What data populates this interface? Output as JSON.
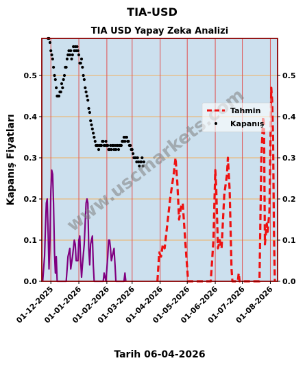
{
  "chart_data": {
    "type": "line",
    "suptitle": "TIA-USD",
    "title": "TIA USD Yapay Zeka Analizi",
    "ylabel": "Kapanış Fiyatları",
    "xlabel": "Tarih 06-04-2026",
    "watermark": "www.uscmarkets.com",
    "ylim": [
      0,
      0.59
    ],
    "xlim": [
      "2025-11-21",
      "2026-08-09"
    ],
    "yticks": [
      "0.0",
      "0.1",
      "0.2",
      "0.3",
      "0.4",
      "0.5"
    ],
    "ytick_values": [
      0,
      0.1,
      0.2,
      0.3,
      0.4,
      0.5
    ],
    "xticks": [
      "01-12-2025",
      "01-01-2026",
      "01-02-2026",
      "01-03-2026",
      "01-04-2026",
      "01-05-2026",
      "01-06-2026",
      "01-07-2026",
      "01-08-2026"
    ],
    "xtick_dates": [
      "2025-12-01",
      "2026-01-01",
      "2026-02-01",
      "2026-03-01",
      "2026-04-01",
      "2026-05-01",
      "2026-06-01",
      "2026-07-01",
      "2026-08-01"
    ],
    "grid": true,
    "legend_position": "right",
    "colors": {
      "plot_bg": "#cce0ee",
      "frame": "#8b0000",
      "vline": "#e05050",
      "hline": "#f0b060",
      "forecast": "#ee1111",
      "close": "#000000",
      "purple": "#800080"
    },
    "series": [
      {
        "name": "Tahmin",
        "style": "dashed",
        "points": [
          [
            "2026-03-29",
            0.0
          ],
          [
            "2026-03-31",
            0.07
          ],
          [
            "2026-04-02",
            0.06
          ],
          [
            "2026-04-04",
            0.09
          ],
          [
            "2026-04-06",
            0.08
          ],
          [
            "2026-04-09",
            0.14
          ],
          [
            "2026-04-12",
            0.2
          ],
          [
            "2026-04-14",
            0.23
          ],
          [
            "2026-04-16",
            0.26
          ],
          [
            "2026-04-18",
            0.3
          ],
          [
            "2026-04-20",
            0.24
          ],
          [
            "2026-04-22",
            0.15
          ],
          [
            "2026-04-24",
            0.18
          ],
          [
            "2026-04-26",
            0.19
          ],
          [
            "2026-04-29",
            0.09
          ],
          [
            "2026-05-02",
            0.0
          ],
          [
            "2026-05-27",
            0.0
          ],
          [
            "2026-05-30",
            0.1
          ],
          [
            "2026-06-01",
            0.27
          ],
          [
            "2026-06-02",
            0.23
          ],
          [
            "2026-06-04",
            0.08
          ],
          [
            "2026-06-06",
            0.1
          ],
          [
            "2026-06-08",
            0.08
          ],
          [
            "2026-06-11",
            0.21
          ],
          [
            "2026-06-14",
            0.26
          ],
          [
            "2026-06-15",
            0.3
          ],
          [
            "2026-06-17",
            0.22
          ],
          [
            "2026-06-19",
            0.03
          ],
          [
            "2026-06-20",
            0.0
          ],
          [
            "2026-06-26",
            0.0
          ],
          [
            "2026-06-27",
            0.02
          ],
          [
            "2026-06-28",
            0.0
          ],
          [
            "2026-07-20",
            0.0
          ],
          [
            "2026-07-22",
            0.3
          ],
          [
            "2026-07-24",
            0.4
          ],
          [
            "2026-07-25",
            0.38
          ],
          [
            "2026-07-26",
            0.09
          ],
          [
            "2026-07-28",
            0.14
          ],
          [
            "2026-07-29",
            0.12
          ],
          [
            "2026-07-31",
            0.17
          ],
          [
            "2026-08-02",
            0.47
          ],
          [
            "2026-08-03",
            0.44
          ],
          [
            "2026-08-04",
            0.35
          ],
          [
            "2026-08-05",
            0.12
          ],
          [
            "2026-08-06",
            0.0
          ]
        ]
      },
      {
        "name": "Kapanış",
        "style": "dots",
        "points": [
          [
            "2025-11-28",
            0.59
          ],
          [
            "2025-11-29",
            0.59
          ],
          [
            "2025-11-30",
            0.58
          ],
          [
            "2025-12-01",
            0.56
          ],
          [
            "2025-12-02",
            0.55
          ],
          [
            "2025-12-03",
            0.54
          ],
          [
            "2025-12-04",
            0.52
          ],
          [
            "2025-12-05",
            0.5
          ],
          [
            "2025-12-06",
            0.49
          ],
          [
            "2025-12-07",
            0.47
          ],
          [
            "2025-12-08",
            0.45
          ],
          [
            "2025-12-09",
            0.45
          ],
          [
            "2025-12-10",
            0.45
          ],
          [
            "2025-12-11",
            0.46
          ],
          [
            "2025-12-12",
            0.46
          ],
          [
            "2025-12-13",
            0.48
          ],
          [
            "2025-12-14",
            0.47
          ],
          [
            "2025-12-15",
            0.49
          ],
          [
            "2025-12-16",
            0.5
          ],
          [
            "2025-12-17",
            0.52
          ],
          [
            "2025-12-18",
            0.52
          ],
          [
            "2025-12-19",
            0.54
          ],
          [
            "2025-12-20",
            0.55
          ],
          [
            "2025-12-21",
            0.56
          ],
          [
            "2025-12-22",
            0.55
          ],
          [
            "2025-12-23",
            0.56
          ],
          [
            "2025-12-24",
            0.54
          ],
          [
            "2025-12-25",
            0.55
          ],
          [
            "2025-12-26",
            0.57
          ],
          [
            "2025-12-27",
            0.56
          ],
          [
            "2025-12-28",
            0.57
          ],
          [
            "2025-12-29",
            0.56
          ],
          [
            "2025-12-30",
            0.57
          ],
          [
            "2025-12-31",
            0.56
          ],
          [
            "2026-01-01",
            0.55
          ],
          [
            "2026-01-02",
            0.53
          ],
          [
            "2026-01-03",
            0.53
          ],
          [
            "2026-01-04",
            0.54
          ],
          [
            "2026-01-05",
            0.52
          ],
          [
            "2026-01-06",
            0.5
          ],
          [
            "2026-01-07",
            0.49
          ],
          [
            "2026-01-08",
            0.47
          ],
          [
            "2026-01-09",
            0.46
          ],
          [
            "2026-01-10",
            0.45
          ],
          [
            "2026-01-11",
            0.44
          ],
          [
            "2026-01-12",
            0.42
          ],
          [
            "2026-01-13",
            0.41
          ],
          [
            "2026-01-14",
            0.39
          ],
          [
            "2026-01-15",
            0.38
          ],
          [
            "2026-01-16",
            0.37
          ],
          [
            "2026-01-17",
            0.36
          ],
          [
            "2026-01-18",
            0.35
          ],
          [
            "2026-01-19",
            0.34
          ],
          [
            "2026-01-20",
            0.33
          ],
          [
            "2026-01-21",
            0.33
          ],
          [
            "2026-01-22",
            0.33
          ],
          [
            "2026-01-23",
            0.32
          ],
          [
            "2026-01-24",
            0.33
          ],
          [
            "2026-01-25",
            0.33
          ],
          [
            "2026-01-26",
            0.33
          ],
          [
            "2026-01-27",
            0.34
          ],
          [
            "2026-01-28",
            0.34
          ],
          [
            "2026-01-29",
            0.33
          ],
          [
            "2026-01-30",
            0.33
          ],
          [
            "2026-01-31",
            0.34
          ],
          [
            "2026-02-01",
            0.33
          ],
          [
            "2026-02-02",
            0.33
          ],
          [
            "2026-02-03",
            0.32
          ],
          [
            "2026-02-04",
            0.32
          ],
          [
            "2026-02-05",
            0.33
          ],
          [
            "2026-02-06",
            0.32
          ],
          [
            "2026-02-07",
            0.33
          ],
          [
            "2026-02-08",
            0.33
          ],
          [
            "2026-02-09",
            0.32
          ],
          [
            "2026-02-10",
            0.33
          ],
          [
            "2026-02-11",
            0.32
          ],
          [
            "2026-02-12",
            0.33
          ],
          [
            "2026-02-13",
            0.33
          ],
          [
            "2026-02-14",
            0.32
          ],
          [
            "2026-02-15",
            0.33
          ],
          [
            "2026-02-16",
            0.33
          ],
          [
            "2026-02-17",
            0.33
          ],
          [
            "2026-02-18",
            0.34
          ],
          [
            "2026-02-19",
            0.34
          ],
          [
            "2026-02-20",
            0.35
          ],
          [
            "2026-02-21",
            0.34
          ],
          [
            "2026-02-22",
            0.35
          ],
          [
            "2026-02-23",
            0.35
          ],
          [
            "2026-02-24",
            0.34
          ],
          [
            "2026-02-25",
            0.34
          ],
          [
            "2026-02-26",
            0.33
          ],
          [
            "2026-02-27",
            0.33
          ],
          [
            "2026-02-28",
            0.32
          ],
          [
            "2026-03-01",
            0.32
          ],
          [
            "2026-03-02",
            0.31
          ],
          [
            "2026-03-03",
            0.3
          ],
          [
            "2026-03-04",
            0.3
          ],
          [
            "2026-03-05",
            0.3
          ],
          [
            "2026-03-06",
            0.29
          ],
          [
            "2026-03-07",
            0.3
          ],
          [
            "2026-03-08",
            0.29
          ],
          [
            "2026-03-09",
            0.28
          ],
          [
            "2026-03-10",
            0.29
          ],
          [
            "2026-03-11",
            0.29
          ],
          [
            "2026-03-12",
            0.3
          ],
          [
            "2026-03-13",
            0.28
          ],
          [
            "2026-03-14",
            0.29
          ]
        ]
      },
      {
        "style": "purple",
        "points": [
          [
            "2025-11-22",
            0.0
          ],
          [
            "2025-11-24",
            0.06
          ],
          [
            "2025-11-25",
            0.13
          ],
          [
            "2025-11-26",
            0.19
          ],
          [
            "2025-11-27",
            0.2
          ],
          [
            "2025-11-28",
            0.12
          ],
          [
            "2025-11-29",
            0.03
          ],
          [
            "2025-11-30",
            0.1
          ],
          [
            "2025-12-01",
            0.22
          ],
          [
            "2025-12-02",
            0.27
          ],
          [
            "2025-12-03",
            0.26
          ],
          [
            "2025-12-04",
            0.19
          ],
          [
            "2025-12-05",
            0.07
          ],
          [
            "2025-12-06",
            0.02
          ],
          [
            "2025-12-07",
            0.06
          ],
          [
            "2025-12-08",
            0.0
          ],
          [
            "2025-12-18",
            0.0
          ],
          [
            "2025-12-20",
            0.06
          ],
          [
            "2025-12-22",
            0.08
          ],
          [
            "2025-12-23",
            0.03
          ],
          [
            "2025-12-25",
            0.06
          ],
          [
            "2025-12-27",
            0.1
          ],
          [
            "2025-12-28",
            0.09
          ],
          [
            "2025-12-29",
            0.05
          ],
          [
            "2025-12-31",
            0.05
          ],
          [
            "2026-01-01",
            0.1
          ],
          [
            "2026-01-02",
            0.11
          ],
          [
            "2026-01-03",
            0.05
          ],
          [
            "2026-01-04",
            0.01
          ],
          [
            "2026-01-05",
            0.04
          ],
          [
            "2026-01-07",
            0.09
          ],
          [
            "2026-01-09",
            0.19
          ],
          [
            "2026-01-10",
            0.2
          ],
          [
            "2026-01-11",
            0.19
          ],
          [
            "2026-01-12",
            0.08
          ],
          [
            "2026-01-13",
            0.04
          ],
          [
            "2026-01-14",
            0.09
          ],
          [
            "2026-01-16",
            0.11
          ],
          [
            "2026-01-17",
            0.04
          ],
          [
            "2026-01-18",
            0.0
          ],
          [
            "2026-01-28",
            0.0
          ],
          [
            "2026-01-29",
            0.02
          ],
          [
            "2026-01-31",
            0.0
          ],
          [
            "2026-02-02",
            0.06
          ],
          [
            "2026-02-03",
            0.1
          ],
          [
            "2026-02-04",
            0.1
          ],
          [
            "2026-02-05",
            0.08
          ],
          [
            "2026-02-06",
            0.05
          ],
          [
            "2026-02-08",
            0.07
          ],
          [
            "2026-02-09",
            0.08
          ],
          [
            "2026-02-10",
            0.04
          ],
          [
            "2026-02-11",
            0.0
          ],
          [
            "2026-02-20",
            0.0
          ],
          [
            "2026-02-21",
            0.02
          ],
          [
            "2026-02-22",
            0.0
          ]
        ]
      }
    ]
  }
}
